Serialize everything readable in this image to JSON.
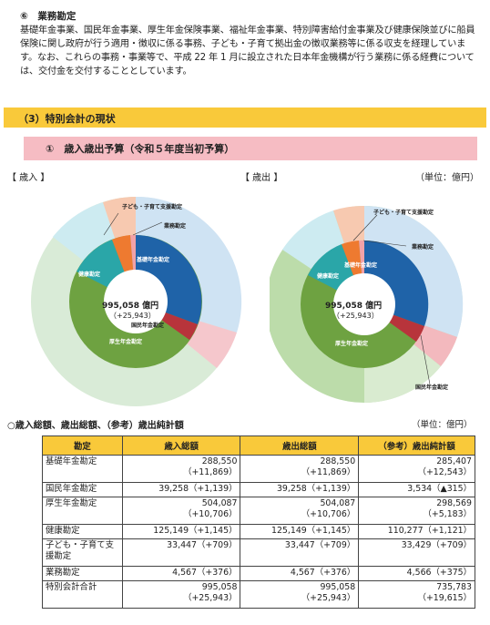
{
  "section6": {
    "title": "⑥　業務勘定",
    "body": "基礎年金事業、国民年金事業、厚生年金保険事業、福祉年金事業、特別障害給付金事業及び健康保険並びに船員保険に関し政府が行う適用・徴収に係る事務、子ども・子育て拠出金の徴収業務等に係る収支を経理しています。なお、これらの事務・事業等で、平成 22 年 1 月に設立された日本年金機構が行う業務に係る経費については、交付金を交付することとしています。"
  },
  "section3": {
    "title": "（3）特別会計の現状"
  },
  "subsection1": {
    "title": "①　歳入歳出予算（令和５年度当初予算）"
  },
  "chart_labels": {
    "revenue": "【 歳入 】",
    "expenditure": "【 歳出 】",
    "unit": "（単位：億円）",
    "center_value": "995,058 億円",
    "center_change": "（+25,943）"
  },
  "chart_data": [
    {
      "type": "pie",
      "title": "【 歳入 】",
      "inner_ring": [
        "基礎年金勘定",
        "国民年金勘定",
        "厚生年金勘定",
        "健康勘定",
        "子ども・子育て支援勘定",
        "業務勘定"
      ],
      "callouts": [
        "子ども・子育て支援勘定",
        "業務勘定",
        "基礎年金勘定",
        "国民年金勘定",
        "厚生年金勘定",
        "健康勘定"
      ]
    },
    {
      "type": "pie",
      "title": "【 歳出 】",
      "inner_ring": [
        "基礎年金勘定",
        "国民年金勘定",
        "厚生年金勘定",
        "健康勘定",
        "子ども・子育て支援勘定",
        "業務勘定"
      ],
      "callouts": [
        "子ども・子育て支援勘定",
        "業務勘定",
        "基礎年金勘定",
        "国民年金勘定",
        "厚生年金勘定",
        "健康勘定"
      ]
    }
  ],
  "table": {
    "title": "○歳入総額、歳出総額、（参考）歳出純計額",
    "unit": "（単位：億円）",
    "headers": [
      "勘定",
      "歳入総額",
      "歳出総額",
      "（参考）歳出純計額"
    ],
    "rows": [
      {
        "name": "基礎年金勘定",
        "rev": "288,550",
        "rev_chg": "（+11,869）",
        "exp": "288,550",
        "exp_chg": "（+11,869）",
        "net": "285,407",
        "net_chg": "（+12,543）"
      },
      {
        "name": "国民年金勘定",
        "rev": "39,258（+1,139）",
        "rev_chg": "",
        "exp": "39,258（+1,139）",
        "exp_chg": "",
        "net": "3,534（▲315）",
        "net_chg": ""
      },
      {
        "name": "厚生年金勘定",
        "rev": "504,087",
        "rev_chg": "（+10,706）",
        "exp": "504,087",
        "exp_chg": "（+10,706）",
        "net": "298,569",
        "net_chg": "（+5,183）"
      },
      {
        "name": "健康勘定",
        "rev": "125,149（+1,145）",
        "rev_chg": "",
        "exp": "125,149（+1,145）",
        "exp_chg": "",
        "net": "110,277（+1,121）",
        "net_chg": ""
      },
      {
        "name": "子ども・子育て支援勘定",
        "rev": "33,447（+709）",
        "rev_chg": "",
        "exp": "33,447（+709）",
        "exp_chg": "",
        "net": "33,429（+709）",
        "net_chg": ""
      },
      {
        "name": "業務勘定",
        "rev": "4,567（+376）",
        "rev_chg": "",
        "exp": "4,567（+376）",
        "exp_chg": "",
        "net": "4,566（+375）",
        "net_chg": ""
      },
      {
        "name": "特別会計合計",
        "rev": "995,058",
        "rev_chg": "（+25,943）",
        "exp": "995,058",
        "exp_chg": "（+25,943）",
        "net": "735,783",
        "net_chg": "（+19,615）"
      }
    ]
  }
}
